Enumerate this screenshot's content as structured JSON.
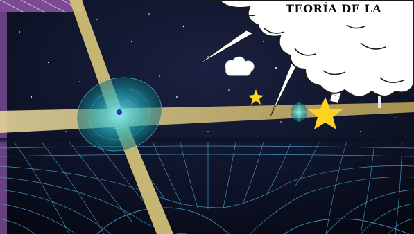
{
  "title": "TEORÍA DE LA",
  "colors": {
    "space": "#0b1022",
    "grid": "#4ea7d6",
    "beam": "#d6c37a",
    "halo": "#1aa6b3",
    "star": "#ffd21f",
    "cloud": "#ffffff",
    "frame": "#7a4a93"
  },
  "icons": [
    "pulsar-icon",
    "small-pulsar-icon",
    "star-icon",
    "speech-cloud-icon",
    "satellite-icon"
  ]
}
